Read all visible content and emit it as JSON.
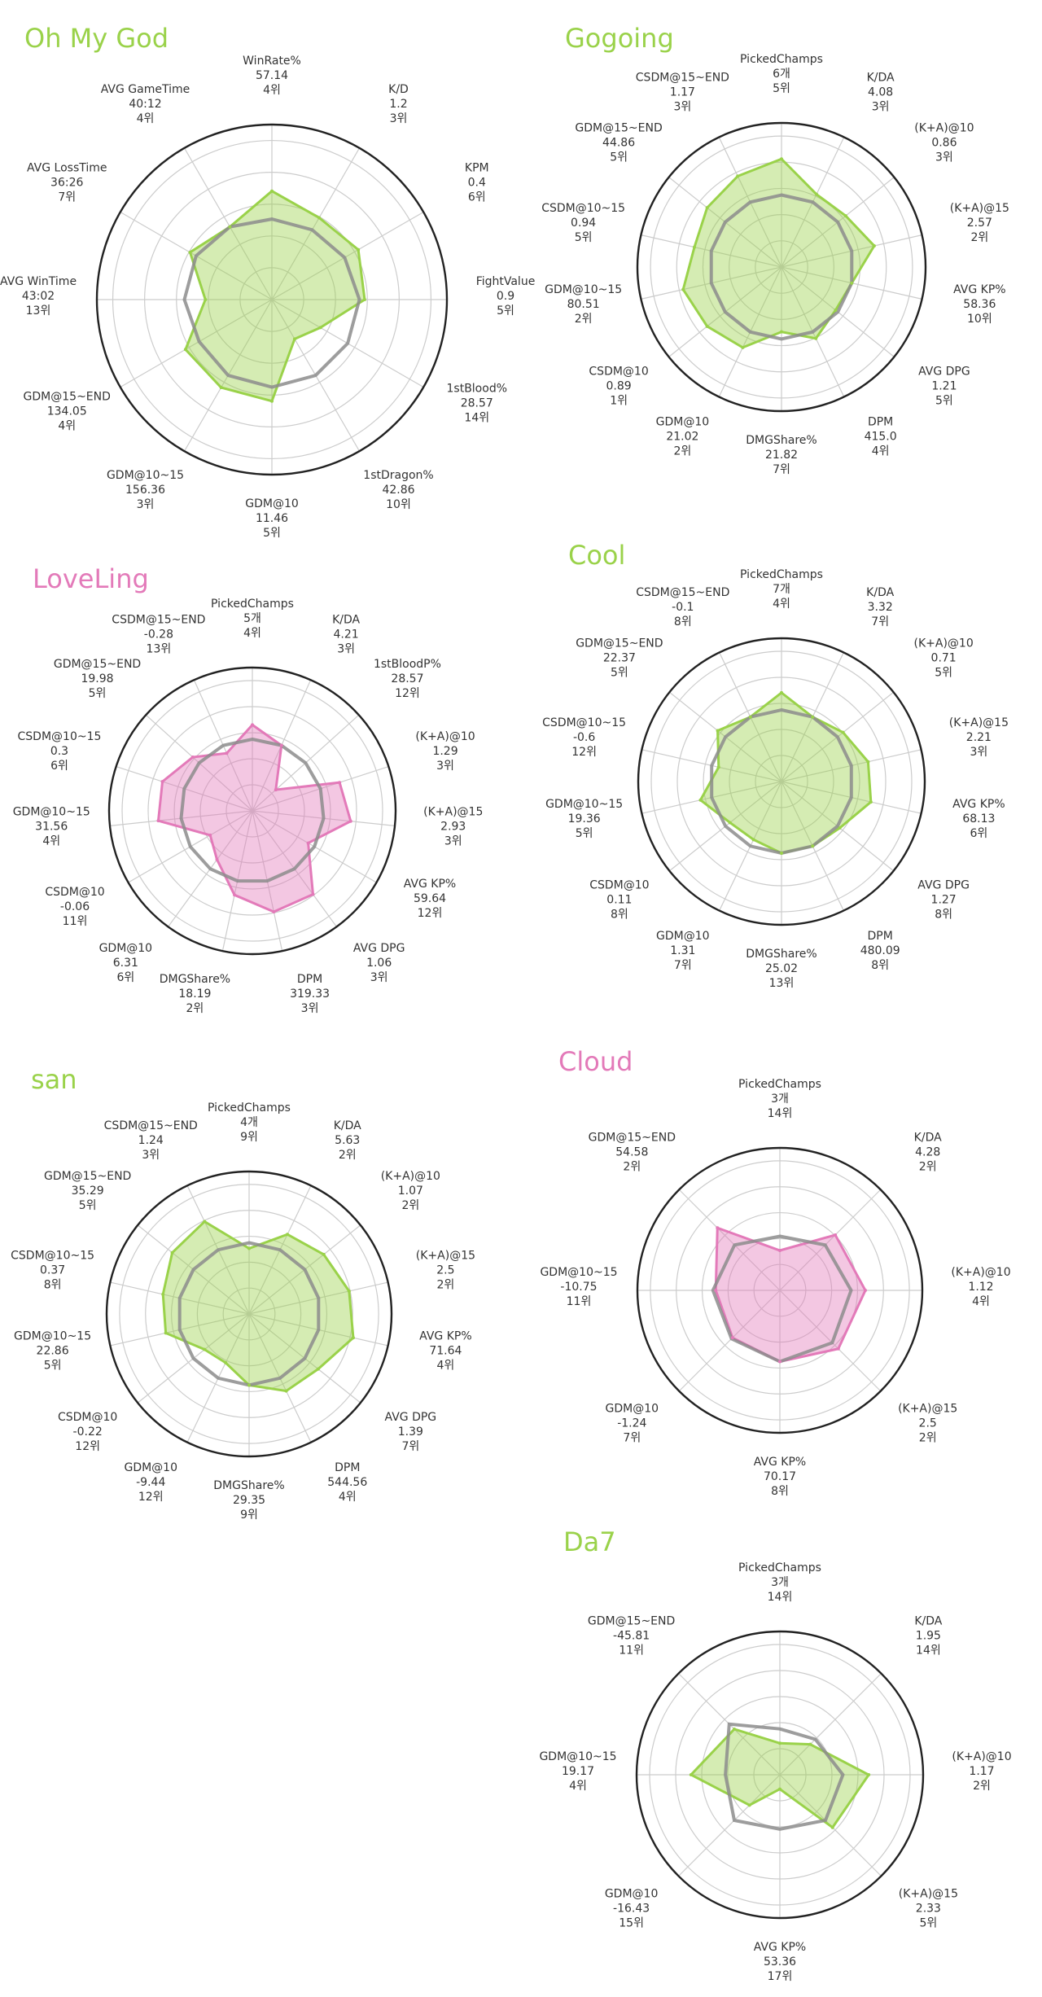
{
  "theme": {
    "green": "#9ad24a",
    "pink": "#e37ab9",
    "avg_line": "#8c8c8c",
    "grid": "#cccccc",
    "outer_ring": "#222222"
  },
  "chart_data": [
    {
      "type": "radar",
      "title": "Oh My God",
      "title_color": "#9ad24a",
      "fill_color": "#9ad24a",
      "start_angle_deg": 0,
      "grid": true,
      "axes": [
        {
          "name": "WinRate%",
          "value": "57.14",
          "rank": "4위"
        },
        {
          "name": "K/D",
          "value": "1.2",
          "rank": "3위"
        },
        {
          "name": "KPM",
          "value": "0.4",
          "rank": "6위"
        },
        {
          "name": "FightValue",
          "value": "0.9",
          "rank": "5위"
        },
        {
          "name": "1stBlood%",
          "value": "28.57",
          "rank": "14위"
        },
        {
          "name": "1stDragon%",
          "value": "42.86",
          "rank": "10위"
        },
        {
          "name": "GDM@10",
          "value": "11.46",
          "rank": "5위"
        },
        {
          "name": "GDM@10~15",
          "value": "156.36",
          "rank": "3위"
        },
        {
          "name": "GDM@15~END",
          "value": "134.05",
          "rank": "4위"
        },
        {
          "name": "AVG WinTime",
          "value": "43:02",
          "rank": "13위"
        },
        {
          "name": "AVG LossTime",
          "value": "36:26",
          "rank": "7위"
        },
        {
          "name": "AVG GameTime",
          "value": "40:12",
          "rank": "4위"
        }
      ],
      "player_scores": [
        0.62,
        0.54,
        0.57,
        0.53,
        0.32,
        0.26,
        0.58,
        0.58,
        0.57,
        0.38,
        0.54,
        0.48
      ],
      "average_scores": [
        0.46,
        0.46,
        0.48,
        0.5,
        0.5,
        0.5,
        0.5,
        0.5,
        0.48,
        0.5,
        0.5,
        0.48
      ]
    },
    {
      "type": "radar",
      "title": "Gogoing",
      "title_color": "#9ad24a",
      "fill_color": "#9ad24a",
      "start_angle_deg": 0,
      "grid": true,
      "axes": [
        {
          "name": "PickedChamps",
          "value": "6개",
          "rank": "5위"
        },
        {
          "name": "K/DA",
          "value": "4.08",
          "rank": "3위"
        },
        {
          "name": "(K+A)@10",
          "value": "0.86",
          "rank": "3위"
        },
        {
          "name": "(K+A)@15",
          "value": "2.57",
          "rank": "2위"
        },
        {
          "name": "AVG KP%",
          "value": "58.36",
          "rank": "10위"
        },
        {
          "name": "AVG DPG",
          "value": "1.21",
          "rank": "5위"
        },
        {
          "name": "DPM",
          "value": "415.0",
          "rank": "4위"
        },
        {
          "name": "DMGShare%",
          "value": "21.82",
          "rank": "7위"
        },
        {
          "name": "GDM@10",
          "value": "21.02",
          "rank": "2위"
        },
        {
          "name": "CSDM@10",
          "value": "0.89",
          "rank": "1위"
        },
        {
          "name": "GDM@10~15",
          "value": "80.51",
          "rank": "2위"
        },
        {
          "name": "CSDM@10~15",
          "value": "0.94",
          "rank": "5위"
        },
        {
          "name": "GDM@15~END",
          "value": "44.86",
          "rank": "5위"
        },
        {
          "name": "CSDM@15~END",
          "value": "1.17",
          "rank": "3위"
        }
      ],
      "player_scores": [
        0.75,
        0.56,
        0.57,
        0.66,
        0.5,
        0.48,
        0.55,
        0.45,
        0.62,
        0.66,
        0.7,
        0.62,
        0.66,
        0.7
      ],
      "average_scores": [
        0.5,
        0.5,
        0.5,
        0.5,
        0.5,
        0.5,
        0.5,
        0.5,
        0.5,
        0.5,
        0.5,
        0.5,
        0.5,
        0.5
      ]
    },
    {
      "type": "radar",
      "title": "LoveLing",
      "title_color": "#e37ab9",
      "fill_color": "#e37ab9",
      "start_angle_deg": 0,
      "grid": true,
      "axes": [
        {
          "name": "PickedChamps",
          "value": "5개",
          "rank": "4위"
        },
        {
          "name": "K/DA",
          "value": "4.21",
          "rank": "3위"
        },
        {
          "name": "1stBloodP%",
          "value": "28.57",
          "rank": "12위"
        },
        {
          "name": "(K+A)@10",
          "value": "1.29",
          "rank": "3위"
        },
        {
          "name": "(K+A)@15",
          "value": "2.93",
          "rank": "3위"
        },
        {
          "name": "AVG KP%",
          "value": "59.64",
          "rank": "12위"
        },
        {
          "name": "AVG DPG",
          "value": "1.06",
          "rank": "3위"
        },
        {
          "name": "DPM",
          "value": "319.33",
          "rank": "3위"
        },
        {
          "name": "DMGShare%",
          "value": "18.19",
          "rank": "2위"
        },
        {
          "name": "GDM@10",
          "value": "6.31",
          "rank": "6위"
        },
        {
          "name": "CSDM@10",
          "value": "-0.06",
          "rank": "11위"
        },
        {
          "name": "GDM@10~15",
          "value": "31.56",
          "rank": "4위"
        },
        {
          "name": "CSDM@10~15",
          "value": "0.3",
          "rank": "6위"
        },
        {
          "name": "GDM@15~END",
          "value": "19.98",
          "rank": "5위"
        },
        {
          "name": "CSDM@15~END",
          "value": "-0.28",
          "rank": "13위"
        }
      ],
      "player_scores": [
        0.6,
        0.5,
        0.22,
        0.64,
        0.69,
        0.45,
        0.72,
        0.72,
        0.6,
        0.42,
        0.34,
        0.66,
        0.66,
        0.56,
        0.44
      ],
      "average_scores": [
        0.5,
        0.5,
        0.5,
        0.5,
        0.5,
        0.5,
        0.5,
        0.5,
        0.5,
        0.5,
        0.5,
        0.5,
        0.5,
        0.5,
        0.5
      ]
    },
    {
      "type": "radar",
      "title": "Cool",
      "title_color": "#9ad24a",
      "fill_color": "#9ad24a",
      "start_angle_deg": 0,
      "grid": true,
      "axes": [
        {
          "name": "PickedChamps",
          "value": "7개",
          "rank": "4위"
        },
        {
          "name": "K/DA",
          "value": "3.32",
          "rank": "7위"
        },
        {
          "name": "(K+A)@10",
          "value": "0.71",
          "rank": "5위"
        },
        {
          "name": "(K+A)@15",
          "value": "2.21",
          "rank": "3위"
        },
        {
          "name": "AVG KP%",
          "value": "68.13",
          "rank": "6위"
        },
        {
          "name": "AVG DPG",
          "value": "1.27",
          "rank": "8위"
        },
        {
          "name": "DPM",
          "value": "480.09",
          "rank": "8위"
        },
        {
          "name": "DMGShare%",
          "value": "25.02",
          "rank": "13위"
        },
        {
          "name": "GDM@10",
          "value": "1.31",
          "rank": "7위"
        },
        {
          "name": "CSDM@10",
          "value": "0.11",
          "rank": "8위"
        },
        {
          "name": "GDM@10~15",
          "value": "19.36",
          "rank": "5위"
        },
        {
          "name": "CSDM@10~15",
          "value": "-0.6",
          "rank": "12위"
        },
        {
          "name": "GDM@15~END",
          "value": "22.37",
          "rank": "5위"
        },
        {
          "name": "CSDM@15~END",
          "value": "-0.1",
          "rank": "8위"
        }
      ],
      "player_scores": [
        0.62,
        0.5,
        0.55,
        0.62,
        0.64,
        0.52,
        0.5,
        0.5,
        0.45,
        0.46,
        0.58,
        0.45,
        0.57,
        0.5
      ],
      "average_scores": [
        0.5,
        0.5,
        0.5,
        0.5,
        0.5,
        0.5,
        0.5,
        0.5,
        0.5,
        0.5,
        0.5,
        0.5,
        0.5,
        0.5
      ]
    },
    {
      "type": "radar",
      "title": "san",
      "title_color": "#9ad24a",
      "fill_color": "#9ad24a",
      "start_angle_deg": 0,
      "grid": true,
      "axes": [
        {
          "name": "PickedChamps",
          "value": "4개",
          "rank": "9위"
        },
        {
          "name": "K/DA",
          "value": "5.63",
          "rank": "2위"
        },
        {
          "name": "(K+A)@10",
          "value": "1.07",
          "rank": "2위"
        },
        {
          "name": "(K+A)@15",
          "value": "2.5",
          "rank": "2위"
        },
        {
          "name": "AVG KP%",
          "value": "71.64",
          "rank": "4위"
        },
        {
          "name": "AVG DPG",
          "value": "1.39",
          "rank": "7위"
        },
        {
          "name": "DPM",
          "value": "544.56",
          "rank": "4위"
        },
        {
          "name": "DMGShare%",
          "value": "29.35",
          "rank": "9위"
        },
        {
          "name": "GDM@10",
          "value": "-9.44",
          "rank": "12위"
        },
        {
          "name": "CSDM@10",
          "value": "-0.22",
          "rank": "12위"
        },
        {
          "name": "GDM@10~15",
          "value": "22.86",
          "rank": "5위"
        },
        {
          "name": "CSDM@10~15",
          "value": "0.37",
          "rank": "8위"
        },
        {
          "name": "GDM@15~END",
          "value": "35.29",
          "rank": "5위"
        },
        {
          "name": "CSDM@15~END",
          "value": "1.24",
          "rank": "3위"
        }
      ],
      "player_scores": [
        0.46,
        0.62,
        0.67,
        0.72,
        0.75,
        0.62,
        0.6,
        0.5,
        0.38,
        0.4,
        0.6,
        0.62,
        0.69,
        0.72
      ],
      "average_scores": [
        0.5,
        0.5,
        0.5,
        0.5,
        0.5,
        0.5,
        0.5,
        0.5,
        0.5,
        0.5,
        0.5,
        0.5,
        0.5,
        0.5
      ]
    },
    {
      "type": "radar",
      "title": "Cloud",
      "title_color": "#e37ab9",
      "fill_color": "#e37ab9",
      "start_angle_deg": 0,
      "grid": true,
      "axes": [
        {
          "name": "PickedChamps",
          "value": "3개",
          "rank": "14위"
        },
        {
          "name": "K/DA",
          "value": "4.28",
          "rank": "2위"
        },
        {
          "name": "(K+A)@10",
          "value": "1.12",
          "rank": "4위"
        },
        {
          "name": "(K+A)@15",
          "value": "2.5",
          "rank": "2위"
        },
        {
          "name": "AVG KP%",
          "value": "70.17",
          "rank": "8위"
        },
        {
          "name": "GDM@10",
          "value": "-1.24",
          "rank": "7위"
        },
        {
          "name": "GDM@10~15",
          "value": "-10.75",
          "rank": "11위"
        },
        {
          "name": "GDM@15~END",
          "value": "54.58",
          "rank": "2위"
        }
      ],
      "player_scores": [
        0.28,
        0.55,
        0.6,
        0.58,
        0.5,
        0.47,
        0.45,
        0.62
      ],
      "average_scores": [
        0.38,
        0.45,
        0.5,
        0.52,
        0.5,
        0.48,
        0.47,
        0.45
      ]
    },
    {
      "type": "radar",
      "title": "Da7",
      "title_color": "#9ad24a",
      "fill_color": "#9ad24a",
      "start_angle_deg": 0,
      "grid": true,
      "axes": [
        {
          "name": "PickedChamps",
          "value": "3개",
          "rank": "14위"
        },
        {
          "name": "K/DA",
          "value": "1.95",
          "rank": "14위"
        },
        {
          "name": "(K+A)@10",
          "value": "1.17",
          "rank": "2위"
        },
        {
          "name": "(K+A)@15",
          "value": "2.33",
          "rank": "5위"
        },
        {
          "name": "AVG KP%",
          "value": "53.36",
          "rank": "17위"
        },
        {
          "name": "GDM@10",
          "value": "-16.43",
          "rank": "15위"
        },
        {
          "name": "GDM@10~15",
          "value": "19.17",
          "rank": "4위"
        },
        {
          "name": "GDM@15~END",
          "value": "-45.81",
          "rank": "11위"
        }
      ],
      "player_scores": [
        0.22,
        0.3,
        0.62,
        0.52,
        0.1,
        0.3,
        0.62,
        0.45
      ],
      "average_scores": [
        0.32,
        0.35,
        0.44,
        0.45,
        0.38,
        0.45,
        0.38,
        0.5
      ]
    }
  ]
}
